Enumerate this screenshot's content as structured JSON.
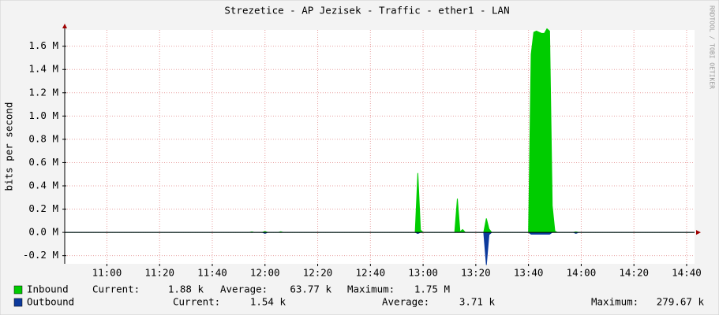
{
  "chart_data": {
    "type": "area",
    "title": "Strezetice - AP Jezisek - Traffic - ether1 - LAN",
    "y_label": "bits per second",
    "watermark": "RRDTOOL / TOBI OETIKER",
    "x": [
      "10:44",
      "11:54",
      "11:55",
      "11:56",
      "11:59",
      "12:00",
      "12:01",
      "12:05",
      "12:06",
      "12:07",
      "12:57",
      "12:58",
      "12:59",
      "13:00",
      "13:12",
      "13:13",
      "13:14",
      "13:15",
      "13:16",
      "13:17",
      "13:23",
      "13:24",
      "13:25",
      "13:26",
      "13:40",
      "13:41",
      "13:42",
      "13:43",
      "13:44",
      "13:45",
      "13:46",
      "13:47",
      "13:48",
      "13:49",
      "13:50",
      "13:51",
      "13:57",
      "13:58",
      "13:59",
      "14:43"
    ],
    "xlim": [
      "10:44",
      "14:43"
    ],
    "xticks": [
      "11:00",
      "11:20",
      "11:40",
      "12:00",
      "12:20",
      "12:40",
      "13:00",
      "13:20",
      "13:40",
      "14:00",
      "14:20",
      "14:40"
    ],
    "ylim": [
      -270000,
      1740000
    ],
    "yticks": [
      {
        "value": -200000,
        "label": "-0.2 M"
      },
      {
        "value": 0,
        "label": "0.0 M"
      },
      {
        "value": 200000,
        "label": "0.2 M"
      },
      {
        "value": 400000,
        "label": "0.4 M"
      },
      {
        "value": 600000,
        "label": "0.6 M"
      },
      {
        "value": 800000,
        "label": "0.8 M"
      },
      {
        "value": 1000000,
        "label": "1.0 M"
      },
      {
        "value": 1200000,
        "label": "1.2 M"
      },
      {
        "value": 1400000,
        "label": "1.4 M"
      },
      {
        "value": 1600000,
        "label": "1.6 M"
      }
    ],
    "grid": true,
    "series": [
      {
        "name": "Inbound",
        "color": "#00cc00",
        "values": [
          0,
          0,
          5000,
          0,
          0,
          8000,
          0,
          0,
          6000,
          0,
          0,
          510000,
          20000,
          0,
          0,
          290000,
          5000,
          25000,
          0,
          0,
          0,
          120000,
          30000,
          0,
          0,
          1530000,
          1720000,
          1730000,
          1720000,
          1710000,
          1710000,
          1750000,
          1730000,
          230000,
          10000,
          0,
          0,
          5000,
          0,
          0
        ],
        "stats": [
          [
            "Current:",
            "1.88 k"
          ],
          [
            "Average:",
            "63.77 k"
          ],
          [
            "Maximum:",
            "1.75 M"
          ]
        ]
      },
      {
        "name": "Outbound",
        "color": "#0d3a9c",
        "values": [
          0,
          0,
          0,
          0,
          0,
          -8000,
          0,
          0,
          0,
          0,
          0,
          -10000,
          0,
          0,
          0,
          0,
          0,
          0,
          0,
          0,
          0,
          -279670,
          -20000,
          0,
          0,
          -15000,
          -15000,
          -15000,
          -15000,
          -15000,
          -15000,
          -15000,
          -15000,
          0,
          0,
          0,
          0,
          -8000,
          0,
          0
        ],
        "stats": [
          [
            "Current:",
            "1.54 k"
          ],
          [
            "Average:",
            "3.71 k"
          ],
          [
            "Maximum:",
            "279.67 k"
          ]
        ]
      }
    ]
  }
}
